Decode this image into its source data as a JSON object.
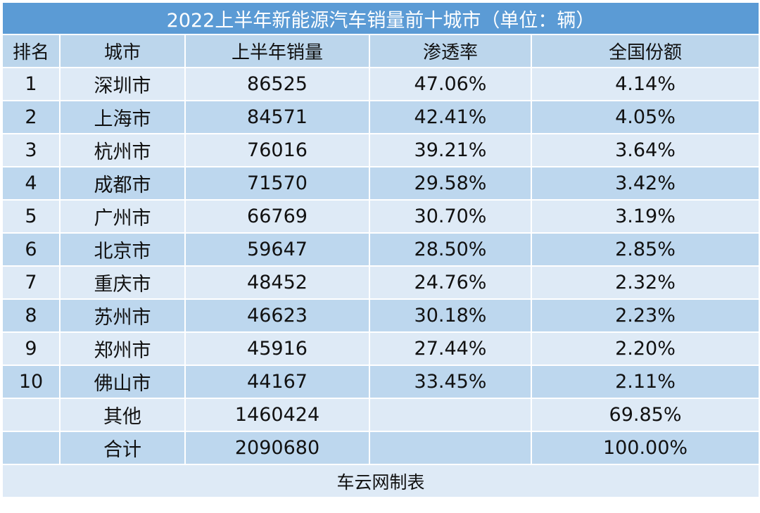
{
  "table": {
    "title": "2022上半年新能源汽车销量前十城市（单位：辆）",
    "columns": [
      "排名",
      "城市",
      "上半年销量",
      "渗透率",
      "全国份额"
    ],
    "rows": [
      [
        "1",
        "深圳市",
        "86525",
        "47.06%",
        "4.14%"
      ],
      [
        "2",
        "上海市",
        "84571",
        "42.41%",
        "4.05%"
      ],
      [
        "3",
        "杭州市",
        "76016",
        "39.21%",
        "3.64%"
      ],
      [
        "4",
        "成都市",
        "71570",
        "29.58%",
        "3.42%"
      ],
      [
        "5",
        "广州市",
        "66769",
        "30.70%",
        "3.19%"
      ],
      [
        "6",
        "北京市",
        "59647",
        "28.50%",
        "2.85%"
      ],
      [
        "7",
        "重庆市",
        "48452",
        "24.76%",
        "2.32%"
      ],
      [
        "8",
        "苏州市",
        "46623",
        "30.18%",
        "2.23%"
      ],
      [
        "9",
        "郑州市",
        "45916",
        "27.44%",
        "2.20%"
      ],
      [
        "10",
        "佛山市",
        "44167",
        "33.45%",
        "2.11%"
      ],
      [
        "",
        "其他",
        "1460424",
        "",
        "69.85%"
      ],
      [
        "",
        "合计",
        "2090680",
        "",
        "100.00%"
      ]
    ],
    "footer": "车云网制表"
  },
  "colors": {
    "title_bg": "#5b9bd5",
    "header_bg": "#bcd6ec",
    "row_light": "#deeaf6",
    "row_dark": "#bdd7ee"
  }
}
